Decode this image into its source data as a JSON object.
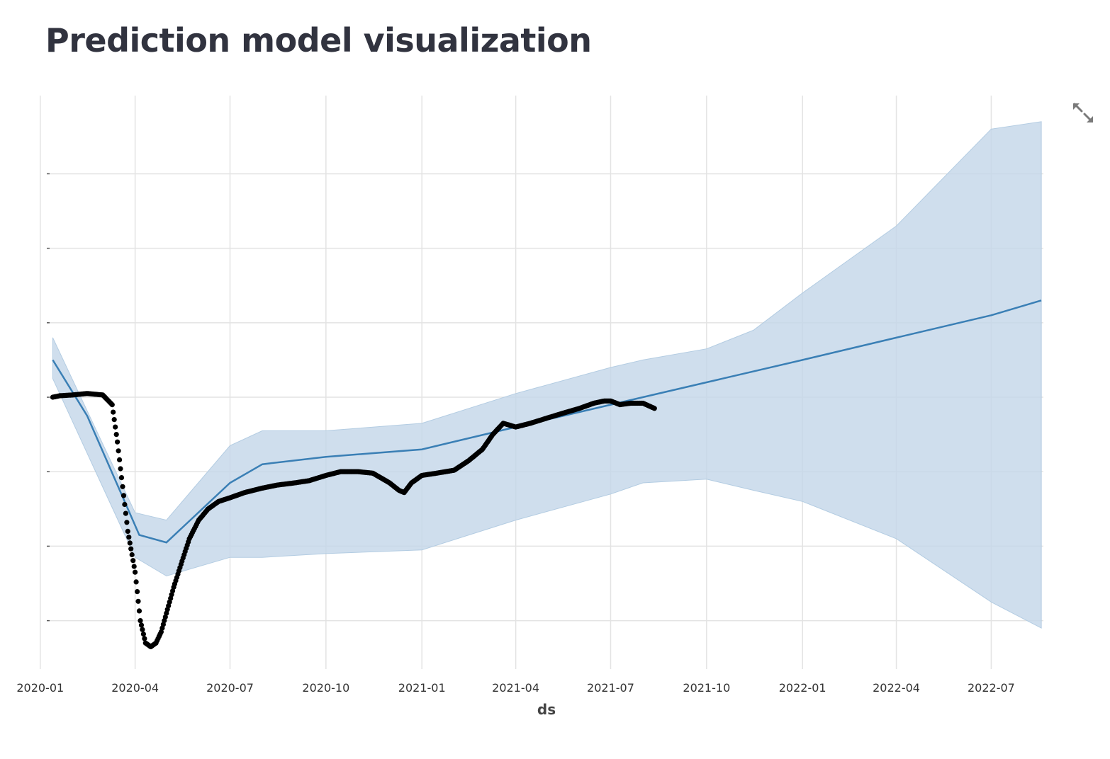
{
  "page": {
    "title": "Prediction model visualization",
    "fullscreen_icon": "expand-arrows-icon"
  },
  "chart_data": {
    "type": "line",
    "xlabel": "ds",
    "ylabel": "",
    "x_axis": "date",
    "xlim": [
      "2020-01-10",
      "2022-08-20"
    ],
    "ylim": [
      -0.65,
      7.05
    ],
    "y_ticks": [
      0,
      1,
      2,
      3,
      4,
      5,
      6
    ],
    "y_tick_labels": [
      "",
      "",
      "",
      "",
      "",
      "",
      ""
    ],
    "x_ticks": [
      "2020-01-01",
      "2020-04-01",
      "2020-07-01",
      "2020-10-01",
      "2021-01-01",
      "2021-04-01",
      "2021-07-01",
      "2021-10-01",
      "2022-01-01",
      "2022-04-01",
      "2022-07-01"
    ],
    "x_tick_labels": [
      "2020-01",
      "2020-04",
      "2020-07",
      "2020-10",
      "2021-01",
      "2021-04",
      "2021-07",
      "2021-10",
      "2022-01",
      "2022-04",
      "2022-07"
    ],
    "grid": true,
    "colors": {
      "forecast_line": "#3a7fb5",
      "uncertainty_band": "#c3d6e8",
      "observed_points": "#000000",
      "grid": "#e3e3e3"
    },
    "series": [
      {
        "type": "band",
        "x": [
          "2020-01-13",
          "2020-04-01",
          "2020-05-01",
          "2020-07-01",
          "2020-08-01",
          "2020-10-01",
          "2021-01-01",
          "2021-04-01",
          "2021-07-01",
          "2021-08-01",
          "2021-10-01",
          "2021-11-15",
          "2022-01-01",
          "2022-04-01",
          "2022-07-01",
          "2022-08-18"
        ],
        "lower": [
          3.25,
          0.85,
          0.6,
          0.85,
          0.85,
          0.9,
          0.95,
          1.35,
          1.7,
          1.85,
          1.9,
          1.75,
          1.6,
          1.1,
          0.25,
          -0.1
        ],
        "upper": [
          3.8,
          1.45,
          1.35,
          2.35,
          2.55,
          2.55,
          2.65,
          3.05,
          3.4,
          3.5,
          3.65,
          3.9,
          4.4,
          5.3,
          6.6,
          6.7
        ]
      },
      {
        "type": "line",
        "x": [
          "2020-01-13",
          "2020-02-15",
          "2020-04-05",
          "2020-05-01",
          "2020-07-01",
          "2020-08-01",
          "2020-10-01",
          "2021-01-01",
          "2021-04-01",
          "2021-07-01",
          "2021-10-01",
          "2022-01-01",
          "2022-04-01",
          "2022-07-01",
          "2022-08-18"
        ],
        "y": [
          3.5,
          2.75,
          1.15,
          1.05,
          1.85,
          2.1,
          2.2,
          2.3,
          2.6,
          2.9,
          3.2,
          3.5,
          3.8,
          4.1,
          4.3
        ],
        "note": ""
      },
      {
        "type": "scatter",
        "x": [
          "2020-01-13",
          "2020-01-20",
          "2020-02-01",
          "2020-02-15",
          "2020-03-01",
          "2020-03-10",
          "2020-03-15",
          "2020-03-20",
          "2020-03-25",
          "2020-04-01",
          "2020-04-06",
          "2020-04-11",
          "2020-04-16",
          "2020-04-21",
          "2020-04-26",
          "2020-05-01",
          "2020-05-08",
          "2020-05-16",
          "2020-05-23",
          "2020-06-01",
          "2020-06-10",
          "2020-06-20",
          "2020-07-01",
          "2020-07-15",
          "2020-08-01",
          "2020-08-15",
          "2020-09-01",
          "2020-09-15",
          "2020-10-01",
          "2020-10-15",
          "2020-11-01",
          "2020-11-15",
          "2020-12-01",
          "2020-12-10",
          "2020-12-15",
          "2020-12-22",
          "2021-01-01",
          "2021-01-15",
          "2021-02-01",
          "2021-02-15",
          "2021-02-28",
          "2021-03-10",
          "2021-03-20",
          "2021-04-01",
          "2021-04-15",
          "2021-05-01",
          "2021-05-15",
          "2021-06-01",
          "2021-06-15",
          "2021-06-25",
          "2021-07-01",
          "2021-07-10",
          "2021-07-20",
          "2021-08-01",
          "2021-08-12"
        ],
        "y": [
          3.0,
          3.02,
          3.03,
          3.05,
          3.03,
          2.9,
          2.4,
          1.8,
          1.2,
          0.65,
          0.0,
          -0.3,
          -0.35,
          -0.3,
          -0.15,
          0.1,
          0.45,
          0.8,
          1.1,
          1.35,
          1.5,
          1.6,
          1.65,
          1.72,
          1.78,
          1.82,
          1.85,
          1.88,
          1.95,
          2.0,
          2.0,
          1.98,
          1.85,
          1.75,
          1.72,
          1.85,
          1.95,
          1.98,
          2.02,
          2.15,
          2.3,
          2.5,
          2.65,
          2.6,
          2.65,
          2.72,
          2.78,
          2.85,
          2.92,
          2.95,
          2.95,
          2.9,
          2.92,
          2.92,
          2.85
        ]
      }
    ]
  }
}
